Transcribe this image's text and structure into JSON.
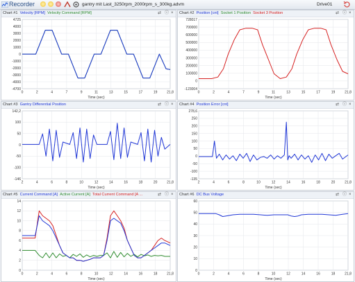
{
  "toolbar": {
    "title": "Recorder",
    "file": "gantry mit Last_3250rpm_2000rpm_s_300kg.advm",
    "drive": "Drive01",
    "buttons": [
      {
        "icon": "sun-icon",
        "color": "#f1c232"
      },
      {
        "icon": "sun-icon",
        "color": "#f1c232"
      },
      {
        "icon": "record-icon",
        "color": "#d9534f"
      },
      {
        "icon": "stop-icon",
        "color": "#e07a7a"
      },
      {
        "icon": "trigger-icon",
        "color": "#c0392b"
      },
      {
        "icon": "settings-icon",
        "color": "#555555"
      }
    ]
  },
  "panels": [
    {
      "number": "Chart #1",
      "series": [
        {
          "name": "Velocity [RPM]",
          "color": "#1f36d6"
        },
        {
          "name": "Velocity Command [RPM]",
          "color": "#2e8b2e"
        }
      ],
      "xlabel": "Time (sec)",
      "yticks": [
        "4725",
        "4000",
        "3000",
        "2000",
        "1000",
        "0",
        "-1000",
        "-2000",
        "-3000",
        "-4000",
        "-4700"
      ],
      "chart_data": {
        "type": "line",
        "xlabel": "Time (sec)",
        "xlim": [
          0,
          21.8
        ],
        "ylim": [
          -4700,
          4725
        ],
        "xticks": [
          "0",
          "2",
          "4",
          "7",
          "9",
          "11",
          "13",
          "15",
          "17",
          "19",
          "21,8"
        ],
        "series": [
          {
            "name": "Velocity [RPM]",
            "x": [
              0,
              1.0,
              2.0,
              3.4,
              4.4,
              5.8,
              6.8,
              8.2,
              9.2,
              10.6,
              11.6,
              13.0,
              14.0,
              15.4,
              16.4,
              17.8,
              18.8,
              20.2,
              21.2,
              21.8
            ],
            "y": [
              0,
              0,
              0,
              3250,
              3250,
              0,
              0,
              -3250,
              -3250,
              0,
              0,
              3250,
              3250,
              0,
              0,
              -3250,
              -3250,
              0,
              -2000,
              -2100
            ]
          },
          {
            "name": "Velocity Command [RPM]",
            "x": [
              0,
              1.0,
              2.0,
              3.4,
              4.4,
              5.8,
              6.8,
              8.2,
              9.2,
              10.6,
              11.6,
              13.0,
              14.0,
              15.4,
              16.4,
              17.8,
              18.8,
              20.2,
              21.2,
              21.8
            ],
            "y": [
              0,
              0,
              0,
              3250,
              3250,
              0,
              0,
              -3250,
              -3250,
              0,
              0,
              3250,
              3250,
              0,
              0,
              -3250,
              -3250,
              0,
              -2000,
              -2100
            ]
          }
        ]
      }
    },
    {
      "number": "Chart #2",
      "series": [
        {
          "name": "Position [cnt]",
          "color": "#1f36d6"
        },
        {
          "name": "Socket 1 Position",
          "color": "#2e8b2e"
        },
        {
          "name": "Socket 3 Position",
          "color": "#d62020"
        }
      ],
      "xlabel": "Time (sec)",
      "yticks": [
        "728017",
        "700000",
        "600000",
        "500000",
        "400000",
        "300000",
        "200000",
        "100000",
        "0",
        "-123004"
      ],
      "chart_data": {
        "type": "line",
        "xlabel": "Time (sec)",
        "xlim": [
          0,
          21.8
        ],
        "ylim": [
          -123004,
          728017
        ],
        "xticks": [
          "0",
          "2",
          "4",
          "7",
          "9",
          "11",
          "13",
          "15",
          "17",
          "19",
          "21,8"
        ],
        "series": [
          {
            "name": "Socket 3 Position",
            "x": [
              0,
              1.9,
              2.8,
              3.6,
              4.3,
              5.2,
              6.0,
              6.9,
              7.8,
              8.6,
              9.3,
              10.2,
              11.0,
              11.9,
              12.8,
              13.6,
              14.3,
              15.2,
              16.0,
              16.9,
              17.8,
              18.6,
              19.3,
              20.2,
              21.0,
              21.8
            ],
            "y": [
              0,
              0,
              20000,
              120000,
              300000,
              480000,
              600000,
              620000,
              620000,
              600000,
              420000,
              230000,
              60000,
              0,
              20000,
              120000,
              300000,
              480000,
              600000,
              620000,
              620000,
              600000,
              420000,
              230000,
              90000,
              60000
            ]
          }
        ]
      }
    },
    {
      "number": "Chart #3",
      "series": [
        {
          "name": "Gantry Differential Position",
          "color": "#1f36d6"
        }
      ],
      "xlabel": "Time (sec)",
      "yticks": [
        "142,2",
        "100",
        "50",
        "0",
        "-50",
        "-100",
        "-146"
      ],
      "chart_data": {
        "type": "line",
        "xlabel": "Time (sec)",
        "xlim": [
          0,
          21.8
        ],
        "ylim": [
          -146,
          142.2
        ],
        "xticks": [
          "2",
          "4",
          "6",
          "8",
          "10",
          "12",
          "14",
          "16",
          "18",
          "20",
          "21,8"
        ],
        "series": [
          {
            "name": "Gantry Differential Position",
            "x": [
              0,
              2.5,
              3.0,
              3.5,
              4.0,
              4.5,
              5.0,
              5.5,
              6.0,
              7.0,
              7.5,
              8.0,
              8.5,
              9.0,
              9.5,
              10.0,
              10.5,
              11.0,
              12.5,
              13.0,
              13.5,
              14.0,
              14.5,
              15.0,
              15.5,
              16.0,
              17.0,
              17.5,
              18.0,
              18.5,
              19.0,
              19.5,
              20.0,
              20.5,
              21.0,
              21.8
            ],
            "y": [
              0,
              0,
              45,
              -50,
              65,
              -70,
              60,
              -55,
              10,
              0,
              50,
              -60,
              70,
              -75,
              65,
              -60,
              40,
              0,
              0,
              55,
              -65,
              90,
              -60,
              70,
              -55,
              10,
              0,
              50,
              -70,
              65,
              -75,
              60,
              -50,
              30,
              -20,
              0
            ]
          }
        ]
      }
    },
    {
      "number": "Chart #4",
      "series": [
        {
          "name": "Position Error [cnt]",
          "color": "#1f36d6"
        }
      ],
      "xlabel": "Time (sec)",
      "yticks": [
        "278,6",
        "250",
        "200",
        "150",
        "100",
        "50",
        "0",
        "-50",
        "-100",
        "-135"
      ],
      "chart_data": {
        "type": "line",
        "xlabel": "Time (sec)",
        "xlim": [
          0,
          21.8
        ],
        "ylim": [
          -135,
          278.6
        ],
        "xticks": [
          "2",
          "4",
          "6",
          "8",
          "10",
          "12",
          "14",
          "16",
          "18",
          "20",
          "21,8"
        ],
        "series": [
          {
            "name": "Position Error [cnt]",
            "x": [
              0,
              2.0,
              2.3,
              2.6,
              3.0,
              3.5,
              4.0,
              4.5,
              5.0,
              5.5,
              6.0,
              6.5,
              7.0,
              7.5,
              8.0,
              8.5,
              9.0,
              9.5,
              10.0,
              10.5,
              11.0,
              11.5,
              12.0,
              12.5,
              12.8,
              13.0,
              13.2,
              13.5,
              14.0,
              14.5,
              15.0,
              15.5,
              16.0,
              16.5,
              17.0,
              17.5,
              18.0,
              18.5,
              19.0,
              19.5,
              20.0,
              20.5,
              21.0,
              21.8
            ],
            "y": [
              0,
              0,
              95,
              -10,
              15,
              -20,
              10,
              -15,
              5,
              -25,
              15,
              -10,
              20,
              -30,
              10,
              -20,
              -5,
              0,
              -10,
              10,
              -15,
              5,
              -10,
              10,
              210,
              -20,
              5,
              -10,
              15,
              -20,
              10,
              -15,
              5,
              -35,
              10,
              -20,
              20,
              -25,
              15,
              -10,
              5,
              20,
              -15,
              10
            ]
          }
        ]
      }
    },
    {
      "number": "Chart #5",
      "series": [
        {
          "name": "Current Command [A]",
          "color": "#1f36d6"
        },
        {
          "name": "Active Current [A]",
          "color": "#2e8b2e"
        },
        {
          "name": "Total Current Command [A ...",
          "color": "#d62020"
        }
      ],
      "xlabel": "Time (sec)",
      "yticks": [
        "14",
        "12",
        "10",
        "8",
        "6",
        "4",
        "2",
        "0"
      ],
      "chart_data": {
        "type": "line",
        "xlabel": "Time (sec)",
        "xlim": [
          0,
          21.8
        ],
        "ylim": [
          0,
          14
        ],
        "xticks": [
          "0",
          "2",
          "4",
          "6",
          "8",
          "10",
          "12",
          "14",
          "16",
          "18",
          "21,8"
        ],
        "series": [
          {
            "name": "Current Command [A]",
            "x": [
              0,
              1.9,
              2.5,
              3.0,
              3.5,
              4.0,
              4.5,
              5.0,
              5.5,
              6.0,
              6.5,
              7.0,
              7.5,
              8.0,
              8.5,
              9.0,
              9.5,
              10.0,
              10.5,
              11.0,
              11.5,
              12.0,
              12.5,
              13.0,
              13.5,
              14.0,
              14.5,
              15.0,
              15.5,
              16.0,
              16.5,
              17.0,
              17.5,
              18.0,
              18.5,
              19.0,
              19.5,
              20.0,
              20.5,
              21.0,
              21.8
            ],
            "y": [
              7,
              7,
              11,
              10,
              9.5,
              9,
              8,
              6.5,
              5,
              3.5,
              3,
              2.5,
              2.5,
              2,
              2,
              1.8,
              2,
              2.2,
              2.5,
              2.5,
              2.5,
              3,
              6,
              10,
              10.5,
              10,
              9.5,
              8,
              6,
              4.5,
              3,
              2.5,
              2.5,
              3,
              3.5,
              4,
              4.5,
              5,
              5.5,
              5.5,
              5
            ]
          },
          {
            "name": "Active Current [A]",
            "x": [
              0,
              1.9,
              2.5,
              3.0,
              3.5,
              4.0,
              4.5,
              5.0,
              5.5,
              6.0,
              6.5,
              7.0,
              7.5,
              8.0,
              8.5,
              9.0,
              9.5,
              10.0,
              10.5,
              11.0,
              11.5,
              12.0,
              12.5,
              13.0,
              13.5,
              14.0,
              14.5,
              15.0,
              15.5,
              16.0,
              16.5,
              17.0,
              17.5,
              18.0,
              18.5,
              19.0,
              19.5,
              20.0,
              20.5,
              21.0,
              21.8
            ],
            "y": [
              4,
              4,
              3,
              2.5,
              3.5,
              2.5,
              3.5,
              2.5,
              3.3,
              2.8,
              3,
              2.5,
              3.2,
              2.8,
              3.3,
              2.6,
              3.1,
              2.7,
              3,
              2.8,
              3,
              3,
              3.5,
              2.5,
              3.8,
              2.6,
              3.6,
              2.7,
              3.4,
              2.8,
              3.2,
              2.7,
              3.2,
              2.9,
              3.1,
              2.8,
              3,
              2.9,
              3,
              2.8,
              2.8
            ]
          },
          {
            "name": "Total Current Command [A ...",
            "x": [
              0,
              1.9,
              2.5,
              3.0,
              3.5,
              4.0,
              4.5,
              5.0,
              5.5,
              6.0,
              6.5,
              7.0,
              7.5,
              8.0,
              8.5,
              9.0,
              9.5,
              10.0,
              10.5,
              11.0,
              11.5,
              12.0,
              12.5,
              13.0,
              13.5,
              14.0,
              14.5,
              15.0,
              15.5,
              16.0,
              16.5,
              17.0,
              17.5,
              18.0,
              18.5,
              19.0,
              19.5,
              20.0,
              20.5,
              21.0,
              21.8
            ],
            "y": [
              6.5,
              6.5,
              12,
              11,
              10.5,
              10,
              9,
              7,
              5,
              3.5,
              3,
              2.5,
              2.5,
              2,
              2,
              1.8,
              2,
              2.2,
              2.5,
              2.5,
              2.5,
              3,
              6.5,
              11,
              12,
              11,
              10,
              8.5,
              6,
              4.5,
              3,
              2.5,
              2.5,
              3,
              3.5,
              4,
              5,
              6,
              6.5,
              6,
              5.5
            ]
          }
        ]
      }
    },
    {
      "number": "Chart #6",
      "series": [
        {
          "name": "DC Bus Voltage",
          "color": "#1f36d6"
        }
      ],
      "xlabel": "Time (sec)",
      "yticks": [
        "60",
        "50",
        "40",
        "30",
        "20",
        "10",
        "0"
      ],
      "chart_data": {
        "type": "line",
        "xlabel": "Time (sec)",
        "xlim": [
          0,
          21.8
        ],
        "ylim": [
          0,
          60
        ],
        "xticks": [
          "0",
          "2",
          "4",
          "6",
          "8",
          "10",
          "12",
          "14",
          "16",
          "18",
          "21,8"
        ],
        "series": [
          {
            "name": "DC Bus Voltage",
            "x": [
              0,
              2.5,
              3.0,
              3.5,
              4.0,
              5.0,
              6.0,
              7.0,
              8.0,
              9.0,
              10.0,
              11.0,
              12.0,
              13.0,
              13.5,
              14.0,
              14.5,
              15.0,
              16.0,
              17.0,
              18.0,
              19.0,
              20.0,
              21.0,
              21.8
            ],
            "y": [
              49,
              49,
              48,
              46.5,
              47,
              48,
              48.5,
              48.5,
              48.5,
              48,
              47.5,
              48,
              48,
              48,
              47,
              46.5,
              47,
              48,
              48.5,
              48.5,
              48.5,
              48,
              47.5,
              48.5,
              49
            ]
          }
        ]
      }
    }
  ]
}
